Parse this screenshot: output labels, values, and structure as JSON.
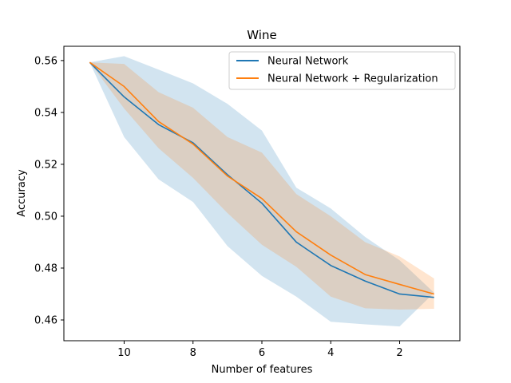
{
  "chart_data": {
    "type": "line",
    "title": "Wine",
    "xlabel": "Number of features",
    "ylabel": "Accuracy",
    "x": [
      11,
      10,
      9,
      8,
      7,
      6,
      5,
      4,
      3,
      2,
      1
    ],
    "xlim": [
      11.75,
      0.25
    ],
    "ylim": [
      0.452,
      0.5655
    ],
    "x_ticks": [
      10,
      8,
      6,
      4,
      2
    ],
    "y_ticks": [
      0.46,
      0.48,
      0.5,
      0.52,
      0.54,
      0.56
    ],
    "y_tick_labels": [
      "0.46",
      "0.48",
      "0.50",
      "0.52",
      "0.54",
      "0.56"
    ],
    "grid": false,
    "legend": "top-right",
    "series": [
      {
        "name": "Neural Network",
        "color": "#1f77b4",
        "values": [
          0.5593,
          0.546,
          0.5353,
          0.5283,
          0.516,
          0.505,
          0.49,
          0.481,
          0.475,
          0.47,
          0.4687
        ],
        "band_lower": [
          0.5593,
          0.5305,
          0.5142,
          0.5055,
          0.4885,
          0.477,
          0.469,
          0.4593,
          0.4583,
          0.4575,
          0.4705
        ],
        "band_upper": [
          0.5593,
          0.5617,
          0.5565,
          0.5512,
          0.5433,
          0.533,
          0.511,
          0.503,
          0.492,
          0.483,
          0.4705
        ]
      },
      {
        "name": "Neural Network + Regularization",
        "color": "#ff7f0e",
        "values": [
          0.5593,
          0.55,
          0.5365,
          0.5278,
          0.5155,
          0.5068,
          0.494,
          0.485,
          0.4775,
          0.4737,
          0.47
        ],
        "band_lower": [
          0.5593,
          0.5415,
          0.5262,
          0.5148,
          0.5012,
          0.489,
          0.4805,
          0.469,
          0.4645,
          0.464,
          0.4643
        ],
        "band_upper": [
          0.5593,
          0.5587,
          0.5478,
          0.5418,
          0.5305,
          0.5245,
          0.5085,
          0.5,
          0.49,
          0.4845,
          0.476
        ]
      }
    ]
  }
}
